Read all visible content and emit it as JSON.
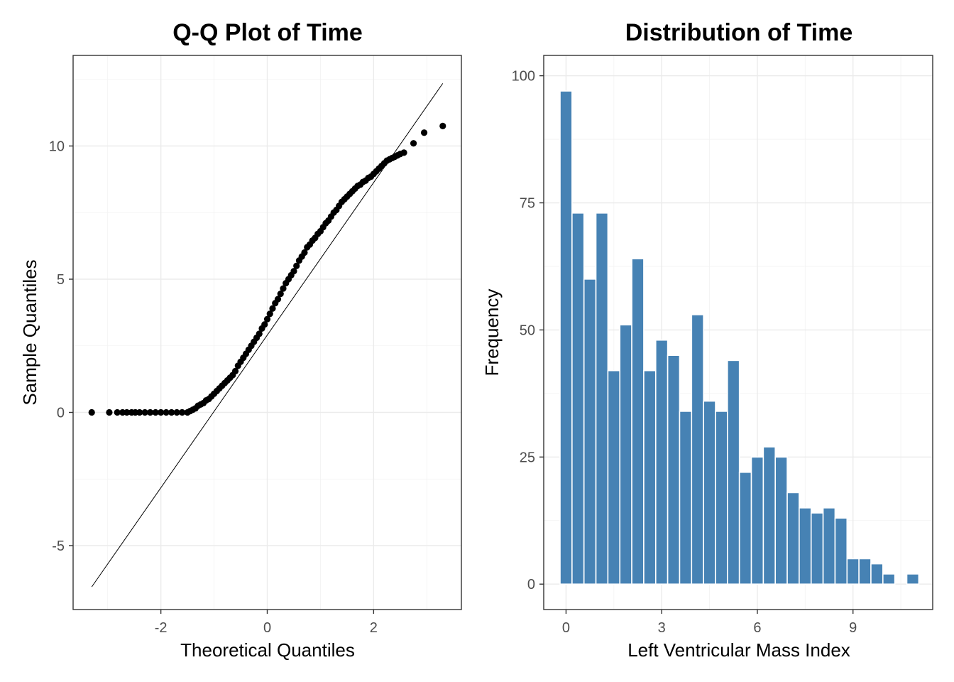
{
  "chart_data": [
    {
      "type": "scatter",
      "title": "Q-Q Plot of Time",
      "xlabel": "Theoretical Quantiles",
      "ylabel": "Sample Quantiles",
      "xlim": [
        -3.65,
        3.65
      ],
      "ylim": [
        -7.4,
        13.4
      ],
      "xticks": [
        -2,
        0,
        2
      ],
      "xtick_labels": [
        "-2",
        "0",
        "2"
      ],
      "yticks": [
        -5,
        0,
        5,
        10
      ],
      "ytick_labels": [
        "-5",
        "0",
        "5",
        "10"
      ],
      "grid": true,
      "point_color": "#000000",
      "reference_line": {
        "x": [
          -3.3,
          3.3
        ],
        "y": [
          -6.55,
          12.35
        ]
      },
      "points_x": [
        -3.3,
        -2.97,
        -2.82,
        -2.72,
        -2.64,
        -2.55,
        -2.48,
        -2.4,
        -2.3,
        -2.2,
        -2.1,
        -2.0,
        -1.9,
        -1.8,
        -1.7,
        -1.6,
        -1.5,
        -1.45,
        -1.4,
        -1.35,
        -1.3,
        -1.25,
        -1.2,
        -1.15,
        -1.1,
        -1.05,
        -1.0,
        -0.95,
        -0.9,
        -0.85,
        -0.8,
        -0.75,
        -0.7,
        -0.65,
        -0.6,
        -0.55,
        -0.5,
        -0.45,
        -0.4,
        -0.35,
        -0.3,
        -0.25,
        -0.2,
        -0.15,
        -0.1,
        -0.05,
        0.0,
        0.05,
        0.1,
        0.15,
        0.2,
        0.25,
        0.3,
        0.35,
        0.4,
        0.45,
        0.5,
        0.55,
        0.6,
        0.65,
        0.7,
        0.75,
        0.8,
        0.85,
        0.9,
        0.95,
        1.0,
        1.05,
        1.1,
        1.15,
        1.2,
        1.25,
        1.3,
        1.35,
        1.4,
        1.45,
        1.5,
        1.55,
        1.6,
        1.65,
        1.7,
        1.75,
        1.8,
        1.85,
        1.9,
        1.95,
        2.0,
        2.05,
        2.1,
        2.15,
        2.2,
        2.25,
        2.3,
        2.35,
        2.4,
        2.45,
        2.5,
        2.57,
        2.75,
        2.95,
        3.3
      ],
      "points_y": [
        0.0,
        0.0,
        0.0,
        0.0,
        0.0,
        0.0,
        0.0,
        0.0,
        0.0,
        0.0,
        0.0,
        0.0,
        0.0,
        0.0,
        0.0,
        0.0,
        0.0,
        0.05,
        0.1,
        0.15,
        0.25,
        0.3,
        0.35,
        0.45,
        0.5,
        0.6,
        0.7,
        0.8,
        0.9,
        1.0,
        1.1,
        1.2,
        1.3,
        1.4,
        1.55,
        1.75,
        1.9,
        2.05,
        2.2,
        2.35,
        2.5,
        2.65,
        2.8,
        2.95,
        3.15,
        3.3,
        3.5,
        3.7,
        3.9,
        4.1,
        4.25,
        4.45,
        4.65,
        4.85,
        5.0,
        5.15,
        5.3,
        5.5,
        5.7,
        5.85,
        6.0,
        6.2,
        6.3,
        6.45,
        6.55,
        6.7,
        6.8,
        6.95,
        7.1,
        7.2,
        7.35,
        7.5,
        7.6,
        7.75,
        7.9,
        8.0,
        8.1,
        8.2,
        8.3,
        8.4,
        8.5,
        8.55,
        8.65,
        8.7,
        8.8,
        8.85,
        8.95,
        9.05,
        9.15,
        9.25,
        9.35,
        9.45,
        9.5,
        9.55,
        9.6,
        9.65,
        9.7,
        9.75,
        10.1,
        10.5,
        10.75
      ]
    },
    {
      "type": "bar",
      "title": "Distribution of Time",
      "xlabel": "Left Ventricular Mass Index",
      "ylabel": "Frequency",
      "xlim": [
        -0.7,
        11.5
      ],
      "ylim": [
        -5,
        104
      ],
      "xticks": [
        0,
        3,
        6,
        9
      ],
      "xtick_labels": [
        "0",
        "3",
        "6",
        "9"
      ],
      "yticks": [
        0,
        25,
        50,
        75,
        100
      ],
      "ytick_labels": [
        "0",
        "25",
        "50",
        "75",
        "100"
      ],
      "grid": true,
      "bar_color": "#4682B4",
      "bin_width": 0.375,
      "categories": [
        0.0,
        0.375,
        0.75,
        1.125,
        1.5,
        1.875,
        2.25,
        2.625,
        3.0,
        3.375,
        3.75,
        4.125,
        4.5,
        4.875,
        5.25,
        5.625,
        6.0,
        6.375,
        6.75,
        7.125,
        7.5,
        7.875,
        8.25,
        8.625,
        9.0,
        9.375,
        9.75,
        10.125,
        10.5,
        10.875
      ],
      "values": [
        97,
        73,
        60,
        73,
        42,
        51,
        64,
        42,
        48,
        45,
        34,
        53,
        36,
        34,
        44,
        22,
        25,
        27,
        25,
        18,
        15,
        14,
        15,
        13,
        5,
        5,
        4,
        2,
        0,
        2
      ]
    }
  ]
}
